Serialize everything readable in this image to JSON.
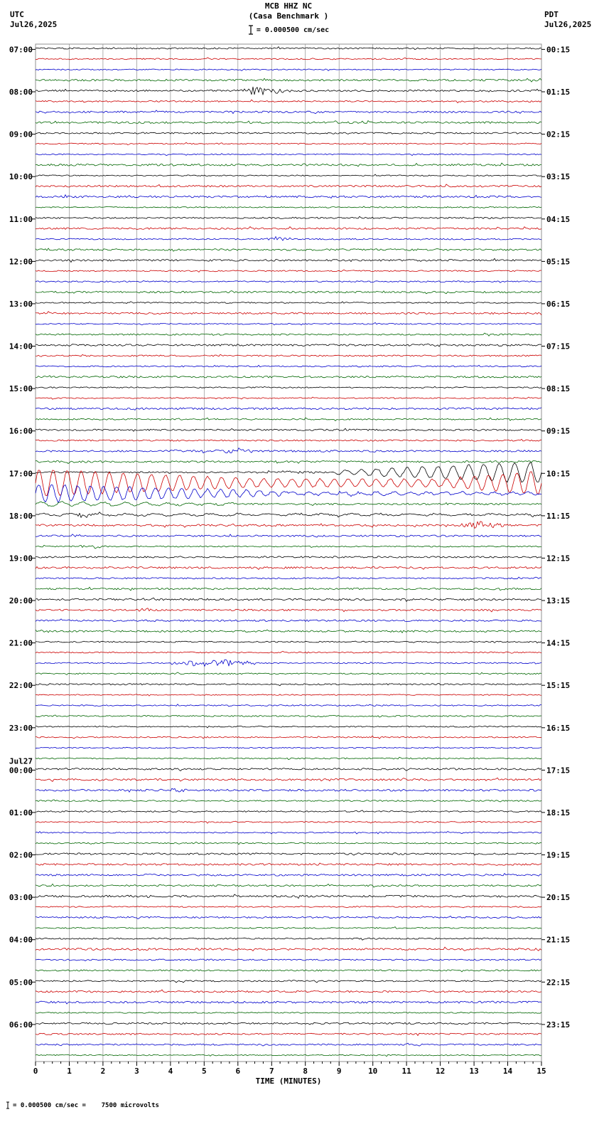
{
  "header": {
    "title": "MCB HHZ NC",
    "subtitle": "(Casa Benchmark )",
    "scale_text": "= 0.000500 cm/sec",
    "left": {
      "tz": "UTC",
      "date": "Jul26,2025"
    },
    "right": {
      "tz": "PDT",
      "date": "Jul26,2025"
    }
  },
  "footer": {
    "text": "= 0.000500 cm/sec =    7500 microvolts"
  },
  "chart_data": {
    "type": "line",
    "variant": "helicorder-seismogram",
    "title": "MCB HHZ NC (Casa Benchmark )",
    "xlabel": "TIME (MINUTES)",
    "x_range": [
      0,
      15
    ],
    "x_tick_labels": [
      "0",
      "1",
      "2",
      "3",
      "4",
      "5",
      "6",
      "7",
      "8",
      "9",
      "10",
      "11",
      "12",
      "13",
      "14",
      "15"
    ],
    "minutes_per_row": 15,
    "rows": 96,
    "trace_colors": [
      "#000000",
      "#cc0000",
      "#0000cc",
      "#006600"
    ],
    "grid_color": "#909090",
    "background": "#ffffff",
    "baseline_noise": 1.1,
    "utc_hour_labels": [
      "07:00",
      "08:00",
      "09:00",
      "10:00",
      "11:00",
      "12:00",
      "13:00",
      "14:00",
      "15:00",
      "16:00",
      "17:00",
      "18:00",
      "19:00",
      "20:00",
      "21:00",
      "22:00",
      "23:00",
      "00:00",
      "01:00",
      "02:00",
      "03:00",
      "04:00",
      "05:00",
      "06:00"
    ],
    "utc_date_break": {
      "hour_index": 17,
      "label": "Jul27"
    },
    "pdt_labels": [
      "00:15",
      "01:15",
      "02:15",
      "03:15",
      "04:15",
      "05:15",
      "06:15",
      "07:15",
      "08:15",
      "09:15",
      "10:15",
      "11:15",
      "12:15",
      "13:15",
      "14:15",
      "15:15",
      "16:15",
      "17:15",
      "18:15",
      "19:15",
      "20:15",
      "21:15",
      "22:15",
      "23:15"
    ],
    "events": [
      {
        "row": 4,
        "utc": "08:00",
        "type": "burst",
        "t0": 5.9,
        "t1": 7.5,
        "amp": 5.5
      },
      {
        "row": 18,
        "utc": "11:30",
        "type": "burst",
        "t0": 6.7,
        "t1": 7.7,
        "amp": 3
      },
      {
        "row": 38,
        "utc": "16:30",
        "type": "burst",
        "t0": 3.8,
        "t1": 4.4,
        "amp": 2
      },
      {
        "row": 38,
        "utc": "16:30",
        "type": "burst",
        "t0": 4.9,
        "t1": 6.7,
        "amp": 3.5
      },
      {
        "row": 40,
        "utc": "17:00",
        "type": "burst",
        "t0": 6.3,
        "t1": 8.8,
        "amp": 2
      },
      {
        "row": 40,
        "utc": "17:00",
        "type": "sine",
        "t0": 8.8,
        "t1": 15,
        "amp0": 2,
        "amp1": 15,
        "freq": 2.2
      },
      {
        "row": 41,
        "utc": "17:15",
        "type": "sine",
        "t0": 0,
        "t1": 6.5,
        "amp0": 19,
        "amp1": 6,
        "freq": 2.4
      },
      {
        "row": 41,
        "utc": "17:15",
        "type": "sine",
        "t0": 6.5,
        "t1": 12,
        "amp0": 6,
        "amp1": 5,
        "freq": 2.4
      },
      {
        "row": 41,
        "utc": "17:15",
        "type": "sine",
        "t0": 12,
        "t1": 15,
        "amp0": 5,
        "amp1": 17,
        "freq": 2.4
      },
      {
        "row": 42,
        "utc": "17:30",
        "type": "sine",
        "t0": 0,
        "t1": 7.5,
        "amp0": 13,
        "amp1": 2.5,
        "freq": 2.6
      },
      {
        "row": 42,
        "utc": "17:30",
        "type": "sine",
        "t0": 7.5,
        "t1": 15,
        "amp0": 2.5,
        "amp1": 1.5,
        "freq": 2.0
      },
      {
        "row": 43,
        "utc": "17:45",
        "type": "sine",
        "t0": 0,
        "t1": 6,
        "amp0": 3,
        "amp1": 1.2,
        "freq": 1.6
      },
      {
        "row": 44,
        "utc": "18:00",
        "type": "burst",
        "t0": 1.0,
        "t1": 1.7,
        "amp": 3.5
      },
      {
        "row": 44,
        "utc": "18:00",
        "type": "sine",
        "t0": 0,
        "t1": 15,
        "amp0": 1.5,
        "amp1": 0.9,
        "freq": 1.2
      },
      {
        "row": 45,
        "utc": "18:15",
        "type": "burst",
        "t0": 12.2,
        "t1": 14.0,
        "amp": 4.5
      },
      {
        "row": 46,
        "utc": "18:30",
        "type": "burst",
        "t0": 0.9,
        "t1": 1.6,
        "amp": 2.5
      },
      {
        "row": 47,
        "utc": "18:45",
        "type": "burst",
        "t0": 1.0,
        "t1": 2.3,
        "amp": 2.5
      },
      {
        "row": 53,
        "utc": "20:15",
        "type": "burst",
        "t0": 2.8,
        "t1": 3.6,
        "amp": 3
      },
      {
        "row": 58,
        "utc": "21:30",
        "type": "burst",
        "t0": 3.9,
        "t1": 6.7,
        "amp": 4.5
      },
      {
        "row": 70,
        "utc": "00:30",
        "type": "burst",
        "t0": 3.6,
        "t1": 4.7,
        "amp": 2.5
      }
    ]
  }
}
